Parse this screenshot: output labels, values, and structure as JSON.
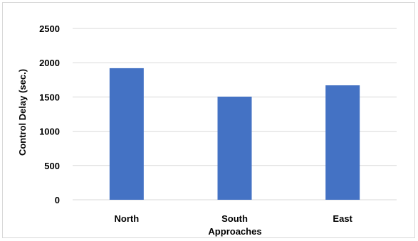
{
  "chart_data": {
    "type": "bar",
    "title": "",
    "xlabel": "Approaches",
    "ylabel": "Control Delay (sec.)",
    "categories": [
      "North",
      "South",
      "East"
    ],
    "values": [
      1920,
      1505,
      1670
    ],
    "ylim": [
      0,
      2500
    ],
    "yticks": [
      "0",
      "500",
      "1000",
      "1500",
      "2000",
      "2500"
    ],
    "grid": true,
    "legend": "none",
    "bar_color": "#4472c4",
    "grid_color": "#d9d9d9"
  }
}
